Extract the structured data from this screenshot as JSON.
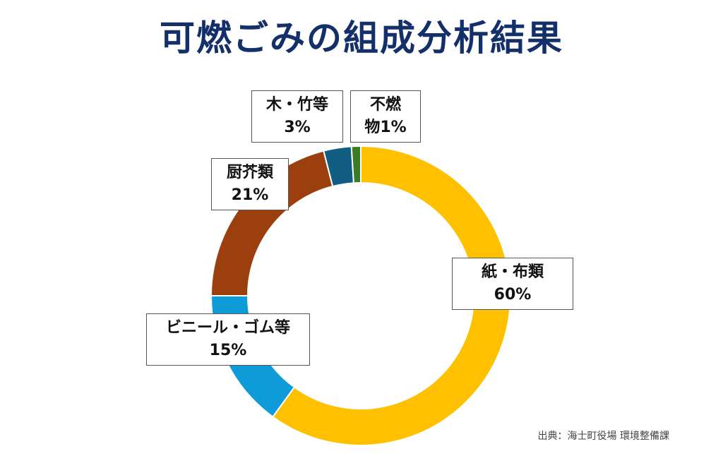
{
  "title": "可燃ごみの組成分析結果",
  "source": "出典：海士町役場 環境整備課",
  "chart_data": {
    "type": "pie",
    "variant": "donut",
    "title": "可燃ごみの組成分析結果",
    "unit": "%",
    "slices": [
      {
        "label": "紙・布類",
        "value": 60,
        "display": "60%",
        "color": "#ffc000"
      },
      {
        "label": "ビニール・ゴム等",
        "value": 15,
        "display": "15%",
        "color": "#0e9bd8"
      },
      {
        "label": "厨芥類",
        "value": 21,
        "display": "21%",
        "color": "#9c3f0e"
      },
      {
        "label": "木・竹等",
        "value": 3,
        "display": "3%",
        "color": "#125e82"
      },
      {
        "label": "不燃物",
        "value": 1,
        "display": "1%",
        "color": "#3a7d22"
      }
    ]
  }
}
